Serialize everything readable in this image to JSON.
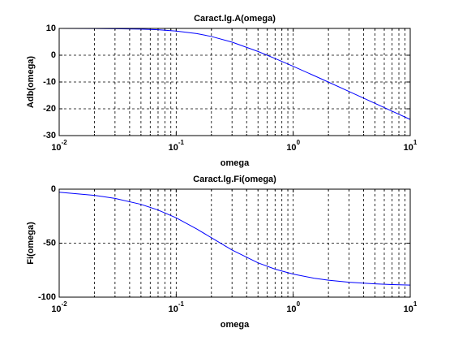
{
  "chart_data": [
    {
      "type": "line",
      "title": "Caract.lg.A(omega)",
      "x_label": "omega",
      "y_label": "Adb(omega)",
      "log_x": true,
      "grid": true,
      "x": [
        0.01,
        0.02,
        0.03,
        0.05,
        0.07,
        0.1,
        0.15,
        0.2,
        0.3,
        0.5,
        0.7,
        1,
        1.5,
        2,
        3,
        5,
        7,
        10
      ],
      "series": [
        {
          "color": "#0000ff",
          "values": [
            9.99,
            9.96,
            9.9,
            9.74,
            9.5,
            9.03,
            8.06,
            6.99,
            4.88,
            1.4,
            -1.22,
            -4.15,
            -7.58,
            -10.04,
            -13.54,
            -17.97,
            -20.89,
            -23.98
          ]
        }
      ],
      "xlim": [
        0.01,
        10
      ],
      "xticks": [
        {
          "value": 0.01,
          "label": "10",
          "exponent": "-2"
        },
        {
          "value": 0.1,
          "label": "10",
          "exponent": "-1"
        },
        {
          "value": 1,
          "label": "10",
          "exponent": "0"
        },
        {
          "value": 10,
          "label": "10",
          "exponent": "1"
        }
      ],
      "ylim": [
        -30,
        10
      ],
      "yticks": [
        -30,
        -20,
        -10,
        0,
        10
      ]
    },
    {
      "type": "line",
      "title": "Caract.lg.Fi(omega)",
      "x_label": "omega",
      "y_label": "Fi(omega)",
      "log_x": true,
      "grid": true,
      "x": [
        0.01,
        0.02,
        0.03,
        0.05,
        0.07,
        0.1,
        0.15,
        0.2,
        0.3,
        0.5,
        0.7,
        1,
        1.5,
        2,
        3,
        5,
        7,
        10
      ],
      "series": [
        {
          "color": "#0000ff",
          "values": [
            -2.86,
            -5.71,
            -8.53,
            -14.04,
            -19.29,
            -26.57,
            -36.87,
            -45,
            -56.31,
            -68.2,
            -74.05,
            -78.69,
            -82.41,
            -84.29,
            -86.19,
            -87.71,
            -88.36,
            -88.85
          ]
        }
      ],
      "xlim": [
        0.01,
        10
      ],
      "xticks": [
        {
          "value": 0.01,
          "label": "10",
          "exponent": "-2"
        },
        {
          "value": 0.1,
          "label": "10",
          "exponent": "-1"
        },
        {
          "value": 1,
          "label": "10",
          "exponent": "0"
        },
        {
          "value": 10,
          "label": "10",
          "exponent": "1"
        }
      ],
      "ylim": [
        -100,
        0
      ],
      "yticks": [
        -100,
        -50,
        0
      ]
    }
  ]
}
